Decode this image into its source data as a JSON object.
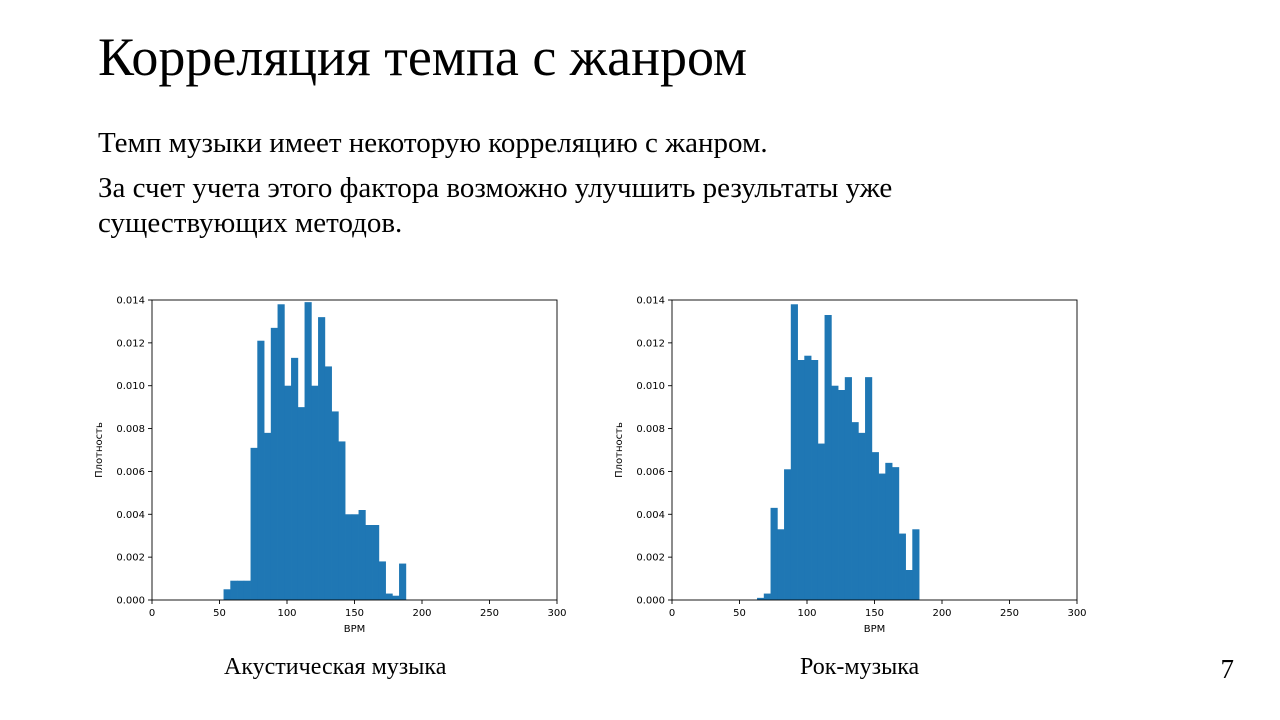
{
  "slide": {
    "title": "Корреляция темпа с жанром",
    "paragraphs": [
      "Темп музыки имеет некоторую корреляцию с жанром.",
      "За счет учета этого фактора возможно улучшить результаты уже существующих методов."
    ],
    "page_number": "7"
  },
  "chart_data": [
    {
      "type": "bar",
      "caption": "Акустическая музыка",
      "xlabel": "BPM",
      "ylabel": "Плотность",
      "xlim": [
        0,
        300
      ],
      "ylim": [
        0,
        0.014
      ],
      "x_ticks": [
        0,
        50,
        100,
        150,
        200,
        250,
        300
      ],
      "y_ticks": [
        "0.000",
        "0.002",
        "0.004",
        "0.006",
        "0.008",
        "0.010",
        "0.012",
        "0.014"
      ],
      "bin_start": 53,
      "bin_width": 5,
      "values": [
        0.0005,
        0.0009,
        0.0009,
        0.0009,
        0.0071,
        0.0121,
        0.0078,
        0.0127,
        0.0138,
        0.01,
        0.0113,
        0.009,
        0.0139,
        0.01,
        0.0132,
        0.0109,
        0.0088,
        0.0074,
        0.004,
        0.004,
        0.0042,
        0.0035,
        0.0035,
        0.0018,
        0.0003,
        0.0002,
        0.0017
      ],
      "color": "#1f77b4",
      "grid": false
    },
    {
      "type": "bar",
      "caption": "Рок-музыка",
      "xlabel": "BPM",
      "ylabel": "Плотность",
      "xlim": [
        0,
        300
      ],
      "ylim": [
        0,
        0.014
      ],
      "x_ticks": [
        0,
        50,
        100,
        150,
        200,
        250,
        300
      ],
      "y_ticks": [
        "0.000",
        "0.002",
        "0.004",
        "0.006",
        "0.008",
        "0.010",
        "0.012",
        "0.014"
      ],
      "bin_start": 63,
      "bin_width": 5,
      "values": [
        0.0001,
        0.0003,
        0.0043,
        0.0033,
        0.0061,
        0.0138,
        0.0112,
        0.0114,
        0.0112,
        0.0073,
        0.0133,
        0.01,
        0.0098,
        0.0104,
        0.0083,
        0.0078,
        0.0104,
        0.0069,
        0.0059,
        0.0064,
        0.0062,
        0.0031,
        0.0014,
        0.0033
      ],
      "color": "#1f77b4",
      "grid": false
    }
  ]
}
